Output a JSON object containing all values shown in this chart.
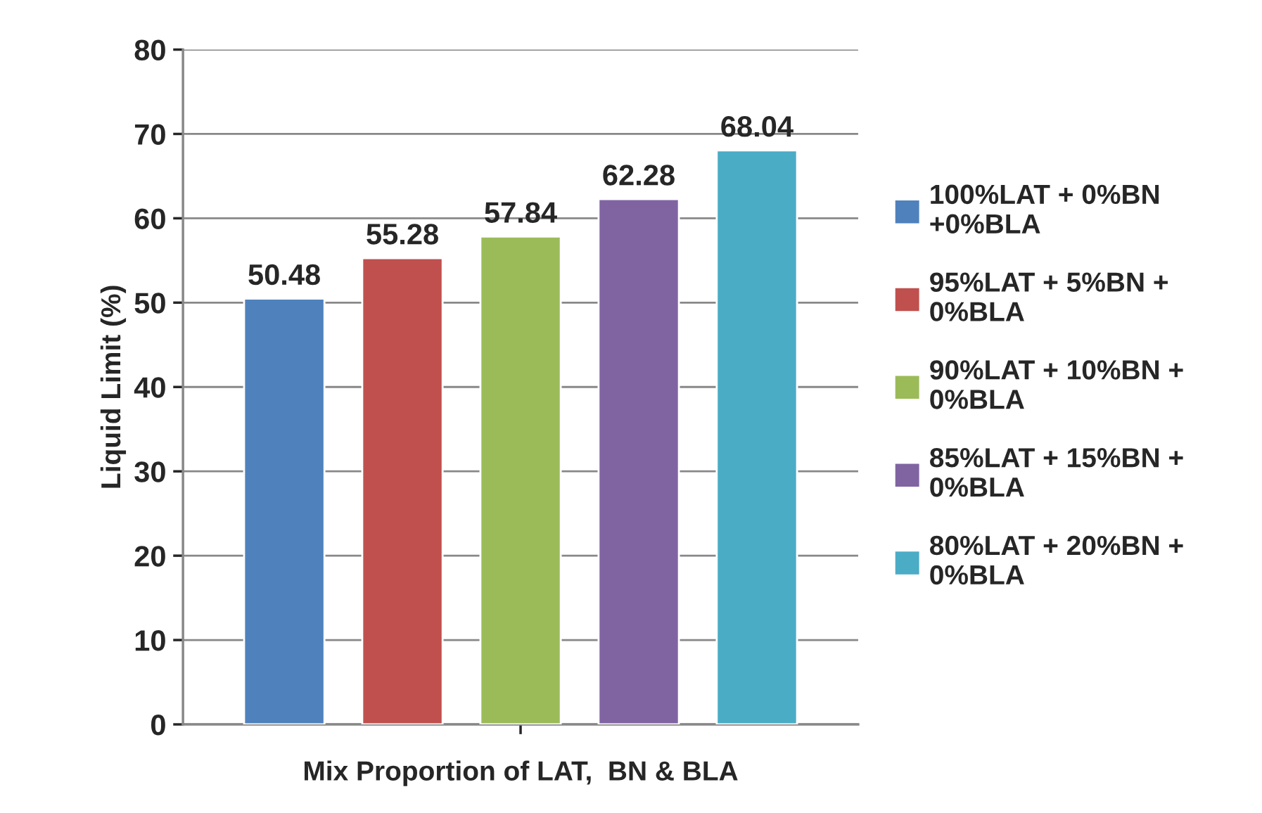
{
  "chart_data": {
    "type": "bar",
    "xlabel": "Mix Proportion of LAT,  BN & BLA",
    "ylabel": "Liquid Limit (%)",
    "categories": [
      null
    ],
    "series": [
      {
        "name": "100%LAT + 0%BN\n+0%BLA",
        "color": "#4f81bd",
        "values": [
          50.48
        ]
      },
      {
        "name": "95%LAT + 5%BN +\n0%BLA",
        "color": "#c0504d",
        "values": [
          55.28
        ]
      },
      {
        "name": "90%LAT + 10%BN +\n0%BLA",
        "color": "#9bbb59",
        "values": [
          57.84
        ]
      },
      {
        "name": "85%LAT + 15%BN +\n0%BLA",
        "color": "#8064a2",
        "values": [
          62.28
        ]
      },
      {
        "name": "80%LAT + 20%BN +\n0%BLA",
        "color": "#4bacc6",
        "values": [
          68.04
        ]
      }
    ],
    "ylim": [
      0,
      80
    ],
    "yticks": [
      0,
      10,
      20,
      30,
      40,
      50,
      60,
      70,
      80
    ],
    "grid": "y",
    "data_labels": true,
    "legend": "right"
  }
}
